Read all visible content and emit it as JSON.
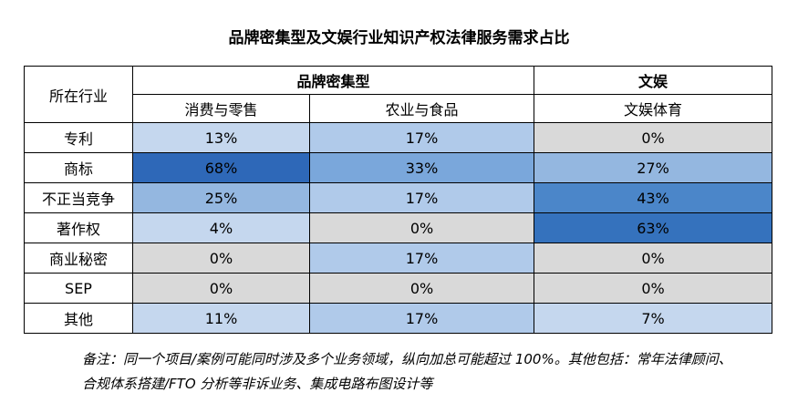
{
  "title": "品牌密集型及文娱行业知识产权法律服务需求占比",
  "table": {
    "corner_label": "所在行业",
    "groups": [
      {
        "label": "品牌密集型"
      },
      {
        "label": "文娱"
      }
    ],
    "columns": [
      "消费与零售",
      "农业与食品",
      "文娱体育"
    ],
    "rows": [
      {
        "label": "专利",
        "values": [
          "13%",
          "17%",
          "0%"
        ]
      },
      {
        "label": "商标",
        "values": [
          "68%",
          "33%",
          "27%"
        ]
      },
      {
        "label": "不正当竞争",
        "values": [
          "25%",
          "17%",
          "43%"
        ]
      },
      {
        "label": "著作权",
        "values": [
          "4%",
          "0%",
          "63%"
        ]
      },
      {
        "label": "商业秘密",
        "values": [
          "0%",
          "17%",
          "0%"
        ]
      },
      {
        "label": "SEP",
        "values": [
          "0%",
          "0%",
          "0%"
        ]
      },
      {
        "label": "其他",
        "values": [
          "11%",
          "17%",
          "7%"
        ]
      }
    ]
  },
  "note": {
    "line1": "备注：同一个项目/案例可能同时涉及多个业务领域，纵向加总可能超过 100%。其他包括：常年法律顾问、",
    "line2": "合规体系搭建/FTO 分析等非诉业务、集成电路布图设计等"
  },
  "colors": {
    "gray": "#d9d9d9",
    "light": "#c5d7ee",
    "medium": "#94b7e0",
    "dark": "#2e68b8"
  }
}
